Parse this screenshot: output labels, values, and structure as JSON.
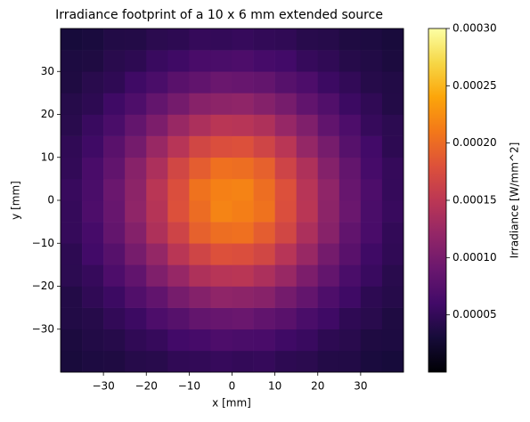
{
  "chart_data": {
    "type": "heatmap",
    "title": "Irradiance footprint of a 10 x 6 mm extended source",
    "xlabel": "x [mm]",
    "ylabel": "y [mm]",
    "colormap": "inferno",
    "xbins": [
      -40,
      -35,
      -30,
      -25,
      -20,
      -15,
      -10,
      -5,
      0,
      5,
      10,
      15,
      20,
      25,
      30,
      35,
      40
    ],
    "ybins": [
      -40,
      -35,
      -30,
      -25,
      -20,
      -15,
      -10,
      -5,
      0,
      5,
      10,
      15,
      20,
      25,
      30,
      35,
      40
    ],
    "z": [
      [
        3.2e-05,
        3.5e-05,
        3.6e-05,
        4.1e-05,
        4.2e-05,
        4.8e-05,
        4.9e-05,
        5.2e-05,
        5e-05,
        5.1e-05,
        4.6e-05,
        4.4e-05,
        3.9e-05,
        3.8e-05,
        3.3e-05,
        3.1e-05
      ],
      [
        3.4e-05,
        3.8e-05,
        4.1e-05,
        4.8e-05,
        5.2e-05,
        6e-05,
        6.3e-05,
        6.8e-05,
        6.6e-05,
        6.5e-05,
        5.8e-05,
        5.4e-05,
        4.6e-05,
        4.3e-05,
        3.6e-05,
        3.5e-05
      ],
      [
        3.8e-05,
        4.1e-05,
        4.9e-05,
        5.6e-05,
        6.8e-05,
        7.5e-05,
        8.5e-05,
        8.8e-05,
        9e-05,
        8.3e-05,
        7.7e-05,
        6.6e-05,
        5.8e-05,
        4.7e-05,
        4.3e-05,
        3.6e-05
      ],
      [
        3.9e-05,
        4.8e-05,
        5.6e-05,
        7.1e-05,
        8.3e-05,
        9.9e-05,
        0.000109,
        0.000117,
        0.000115,
        0.000111,
        9.7e-05,
        8.5e-05,
        6.9e-05,
        5.8e-05,
        4.6e-05,
        4.1e-05
      ],
      [
        4.5e-05,
        5.2e-05,
        6.8e-05,
        8.3e-05,
        0.000105,
        0.000122,
        0.00014,
        0.000146,
        0.000148,
        0.000138,
        0.000124,
        0.000103,
        8.5e-05,
        6.6e-05,
        5.4e-05,
        4.3e-05
      ],
      [
        4.6e-05,
        6e-05,
        7.5e-05,
        9.9e-05,
        0.000121,
        0.000148,
        0.000166,
        0.000179,
        0.000177,
        0.000168,
        0.000146,
        0.000124,
        9.7e-05,
        7.7e-05,
        5.8e-05,
        4.8e-05
      ],
      [
        5.1e-05,
        6.3e-05,
        8.5e-05,
        0.000109,
        0.00014,
        0.000165,
        0.000192,
        0.000202,
        0.000204,
        0.000189,
        0.000168,
        0.000138,
        0.000111,
        8.3e-05,
        6.5e-05,
        4.9e-05
      ],
      [
        5.1e-05,
        6.8e-05,
        8.8e-05,
        0.000117,
        0.000145,
        0.000179,
        0.000201,
        0.000218,
        0.000214,
        0.000205,
        0.000177,
        0.000148,
        0.000115,
        9e-05,
        6.6e-05,
        5.3e-05
      ],
      [
        5.3e-05,
        6.6e-05,
        9e-05,
        0.000115,
        0.000148,
        0.000177,
        0.000205,
        0.000215,
        0.000217,
        0.000202,
        0.000179,
        0.000146,
        0.000117,
        8.8e-05,
        6.8e-05,
        5.1e-05
      ],
      [
        4.9e-05,
        6.5e-05,
        8.3e-05,
        0.000111,
        0.000138,
        0.000168,
        0.000189,
        0.000204,
        0.000202,
        0.000192,
        0.000165,
        0.00014,
        0.000109,
        8.5e-05,
        6.3e-05,
        5.1e-05
      ],
      [
        4.8e-05,
        5.8e-05,
        7.7e-05,
        9.7e-05,
        0.000124,
        0.000146,
        0.000168,
        0.000177,
        0.000179,
        0.000166,
        0.000148,
        0.000121,
        9.9e-05,
        7.5e-05,
        6e-05,
        4.6e-05
      ],
      [
        4.3e-05,
        5.4e-05,
        6.6e-05,
        8.5e-05,
        0.000103,
        0.000124,
        0.000138,
        0.000148,
        0.000146,
        0.00014,
        0.000122,
        0.000105,
        8.3e-05,
        6.8e-05,
        5.2e-05,
        4.5e-05
      ],
      [
        4.1e-05,
        4.6e-05,
        5.8e-05,
        6.9e-05,
        8.5e-05,
        9.7e-05,
        0.000111,
        0.000115,
        0.000117,
        0.000109,
        9.9e-05,
        8.3e-05,
        7.1e-05,
        5.6e-05,
        4.8e-05,
        3.9e-05
      ],
      [
        3.6e-05,
        4.3e-05,
        4.7e-05,
        5.8e-05,
        6.6e-05,
        7.7e-05,
        8.3e-05,
        9e-05,
        8.8e-05,
        8.5e-05,
        7.5e-05,
        6.8e-05,
        5.6e-05,
        4.9e-05,
        4.1e-05,
        3.8e-05
      ],
      [
        3.5e-05,
        3.6e-05,
        4.3e-05,
        4.6e-05,
        5.4e-05,
        5.8e-05,
        6.5e-05,
        6.6e-05,
        6.8e-05,
        6.3e-05,
        6e-05,
        5.2e-05,
        4.8e-05,
        4.1e-05,
        3.8e-05,
        3.4e-05
      ],
      [
        3.1e-05,
        3.3e-05,
        3.8e-05,
        3.9e-05,
        4.4e-05,
        4.6e-05,
        5.1e-05,
        5e-05,
        5.2e-05,
        4.9e-05,
        4.8e-05,
        4.2e-05,
        4.1e-05,
        3.6e-05,
        3.5e-05,
        3.2e-05
      ]
    ],
    "xlim": [
      -40,
      40
    ],
    "ylim": [
      -40,
      40
    ],
    "xticks": [
      {
        "value": -30,
        "label": "−30"
      },
      {
        "value": -20,
        "label": "−20"
      },
      {
        "value": -10,
        "label": "−10"
      },
      0,
      10,
      20,
      30
    ],
    "yticks": [
      {
        "value": -30,
        "label": "−30"
      },
      {
        "value": -20,
        "label": "−20"
      },
      {
        "value": -10,
        "label": "−10"
      },
      0,
      10,
      20,
      30
    ],
    "colorbar": {
      "label": "Irradiance [W/mm^2]",
      "lim": [
        0,
        0.0003
      ],
      "ticks": [
        5e-05,
        {
          "value": 0.0001,
          "label": "0.00010"
        },
        0.00015,
        {
          "value": 0.0002,
          "label": "0.00020"
        },
        0.00025,
        {
          "value": 0.0003,
          "label": "0.00030"
        }
      ]
    }
  }
}
